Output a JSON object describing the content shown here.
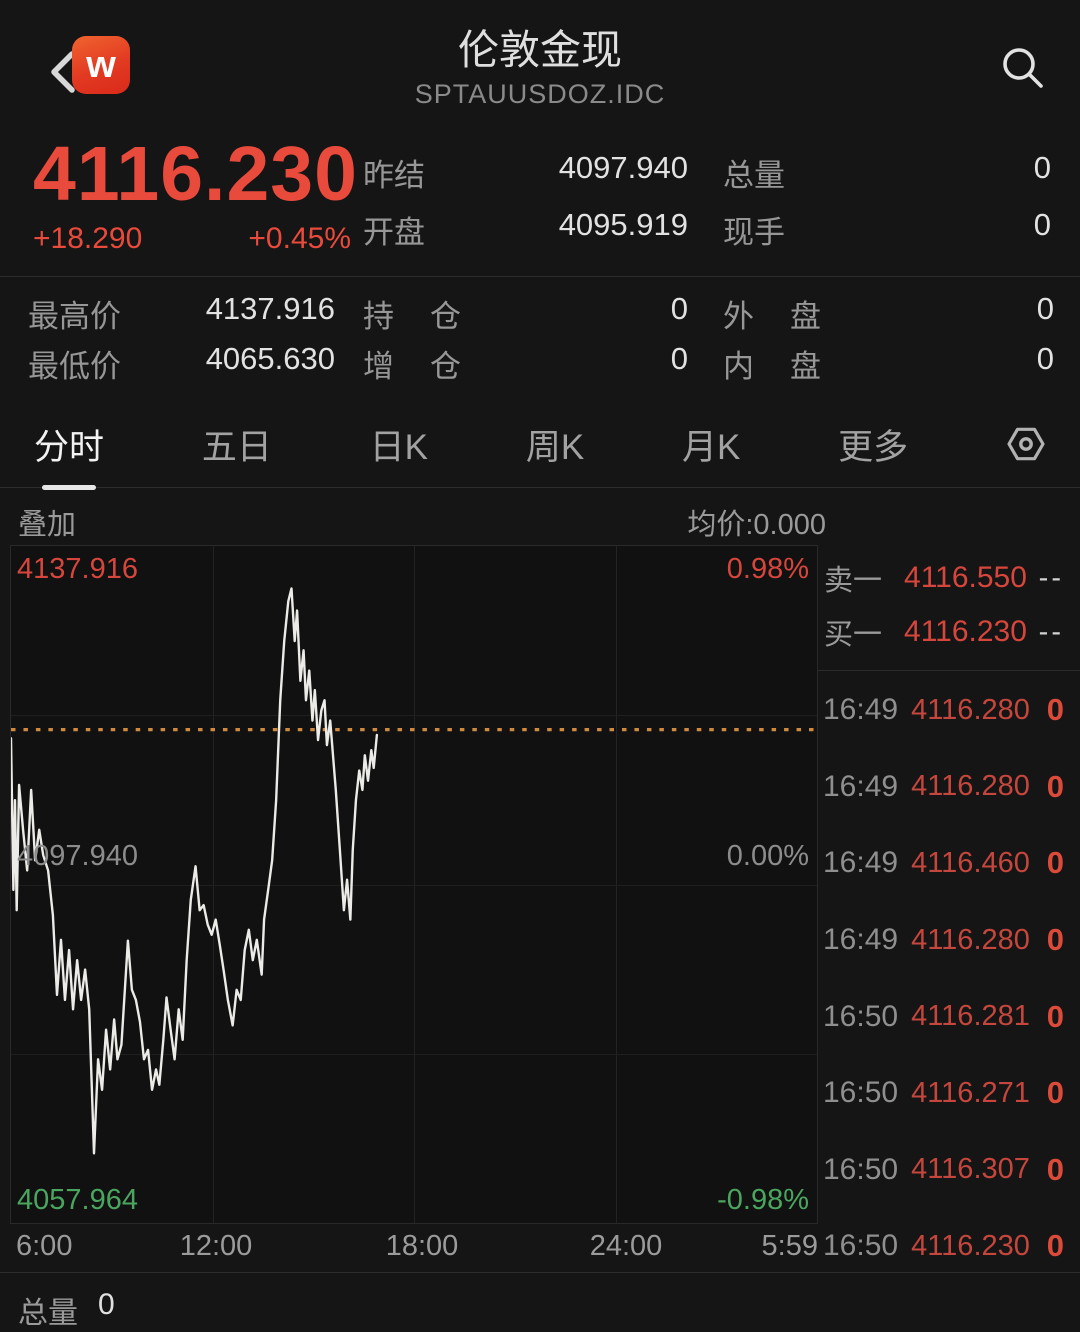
{
  "header": {
    "title": "伦敦金现",
    "subtitle": "SPTAUUSDOZ.IDC",
    "logo_text": "w"
  },
  "quote": {
    "last": "4116.230",
    "change": "+18.290",
    "change_pct": "+0.45%",
    "mid": [
      {
        "label": "昨结",
        "value": "4097.940"
      },
      {
        "label": "开盘",
        "value": "4095.919"
      }
    ],
    "right": [
      {
        "label": "总量",
        "value": "0"
      },
      {
        "label": "现手",
        "value": "0"
      }
    ]
  },
  "stats": [
    [
      {
        "label": "最高价",
        "value": "4137.916"
      },
      {
        "label": "持仓",
        "value": "0"
      },
      {
        "label": "外盘",
        "value": "0"
      }
    ],
    [
      {
        "label": "最低价",
        "value": "4065.630"
      },
      {
        "label": "增仓",
        "value": "0"
      },
      {
        "label": "内盘",
        "value": "0"
      }
    ]
  ],
  "tabs": [
    {
      "label": "分时",
      "active": true
    },
    {
      "label": "五日",
      "active": false
    },
    {
      "label": "日K",
      "active": false
    },
    {
      "label": "周K",
      "active": false
    },
    {
      "label": "月K",
      "active": false
    },
    {
      "label": "更多",
      "active": false
    }
  ],
  "overlay": {
    "label": "叠加",
    "avg": "均价:0.000"
  },
  "chart_data": {
    "type": "line",
    "y_top_label": "4137.916",
    "y_top_pct": "0.98%",
    "y_mid_label": "4097.940",
    "y_mid_pct": "0.00%",
    "y_bottom_label": "4057.964",
    "y_bottom_pct": "-0.98%",
    "ylim": [
      4057.964,
      4137.916
    ],
    "prev_close": 4097.94,
    "last_price_line": 4116.23,
    "x_ticks": [
      "6:00",
      "12:00",
      "18:00",
      "24:00",
      "5:59"
    ],
    "points": [
      [
        0.0,
        4115.2
      ],
      [
        0.003,
        4097.3
      ],
      [
        0.005,
        4107.9
      ],
      [
        0.007,
        4094.9
      ],
      [
        0.01,
        4109.7
      ],
      [
        0.015,
        4104.4
      ],
      [
        0.02,
        4099.6
      ],
      [
        0.025,
        4109.1
      ],
      [
        0.03,
        4100.8
      ],
      [
        0.035,
        4104.4
      ],
      [
        0.04,
        4101.4
      ],
      [
        0.046,
        4099.6
      ],
      [
        0.052,
        4094.3
      ],
      [
        0.057,
        4084.9
      ],
      [
        0.062,
        4091.4
      ],
      [
        0.067,
        4084.3
      ],
      [
        0.072,
        4090.2
      ],
      [
        0.077,
        4083.2
      ],
      [
        0.082,
        4089.0
      ],
      [
        0.087,
        4084.3
      ],
      [
        0.092,
        4087.9
      ],
      [
        0.097,
        4083.2
      ],
      [
        0.103,
        4066.2
      ],
      [
        0.108,
        4077.3
      ],
      [
        0.113,
        4073.7
      ],
      [
        0.118,
        4080.8
      ],
      [
        0.123,
        4076.1
      ],
      [
        0.128,
        4082.0
      ],
      [
        0.132,
        4077.3
      ],
      [
        0.137,
        4079.0
      ],
      [
        0.145,
        4091.3
      ],
      [
        0.15,
        4085.5
      ],
      [
        0.155,
        4084.3
      ],
      [
        0.16,
        4081.7
      ],
      [
        0.165,
        4077.3
      ],
      [
        0.17,
        4078.4
      ],
      [
        0.175,
        4073.7
      ],
      [
        0.18,
        4076.1
      ],
      [
        0.184,
        4074.3
      ],
      [
        0.189,
        4079.6
      ],
      [
        0.193,
        4084.6
      ],
      [
        0.198,
        4080.8
      ],
      [
        0.203,
        4077.3
      ],
      [
        0.208,
        4083.2
      ],
      [
        0.213,
        4079.6
      ],
      [
        0.218,
        4089.0
      ],
      [
        0.223,
        4096.1
      ],
      [
        0.229,
        4100.1
      ],
      [
        0.234,
        4094.9
      ],
      [
        0.239,
        4095.5
      ],
      [
        0.244,
        4093.2
      ],
      [
        0.249,
        4092.0
      ],
      [
        0.254,
        4093.8
      ],
      [
        0.259,
        4090.8
      ],
      [
        0.264,
        4087.7
      ],
      [
        0.269,
        4084.3
      ],
      [
        0.275,
        4081.3
      ],
      [
        0.28,
        4085.5
      ],
      [
        0.285,
        4084.3
      ],
      [
        0.29,
        4090.2
      ],
      [
        0.295,
        4092.6
      ],
      [
        0.3,
        4089.0
      ],
      [
        0.305,
        4091.4
      ],
      [
        0.311,
        4087.3
      ],
      [
        0.314,
        4093.8
      ],
      [
        0.319,
        4097.3
      ],
      [
        0.324,
        4100.8
      ],
      [
        0.329,
        4107.9
      ],
      [
        0.334,
        4119.7
      ],
      [
        0.339,
        4126.7
      ],
      [
        0.344,
        4131.4
      ],
      [
        0.348,
        4132.9
      ],
      [
        0.352,
        4126.7
      ],
      [
        0.355,
        4130.3
      ],
      [
        0.359,
        4122.0
      ],
      [
        0.363,
        4125.6
      ],
      [
        0.366,
        4119.7
      ],
      [
        0.37,
        4123.2
      ],
      [
        0.374,
        4117.3
      ],
      [
        0.377,
        4120.9
      ],
      [
        0.381,
        4115.0
      ],
      [
        0.385,
        4118.5
      ],
      [
        0.389,
        4119.7
      ],
      [
        0.392,
        4114.4
      ],
      [
        0.396,
        4117.3
      ],
      [
        0.4,
        4112.6
      ],
      [
        0.403,
        4109.1
      ],
      [
        0.408,
        4102.0
      ],
      [
        0.413,
        4094.9
      ],
      [
        0.417,
        4098.5
      ],
      [
        0.421,
        4093.8
      ],
      [
        0.424,
        4102.0
      ],
      [
        0.428,
        4107.9
      ],
      [
        0.432,
        4111.4
      ],
      [
        0.436,
        4109.1
      ],
      [
        0.439,
        4113.2
      ],
      [
        0.443,
        4110.2
      ],
      [
        0.447,
        4113.8
      ],
      [
        0.45,
        4111.7
      ],
      [
        0.454,
        4115.6
      ]
    ]
  },
  "order_book": {
    "ask": {
      "label": "卖一",
      "price": "4116.550",
      "vol": "--"
    },
    "bid": {
      "label": "买一",
      "price": "4116.230",
      "vol": "--"
    }
  },
  "ticks": [
    {
      "time": "16:49",
      "price": "4116.280",
      "vol": "0"
    },
    {
      "time": "16:49",
      "price": "4116.280",
      "vol": "0"
    },
    {
      "time": "16:49",
      "price": "4116.460",
      "vol": "0"
    },
    {
      "time": "16:49",
      "price": "4116.280",
      "vol": "0"
    },
    {
      "time": "16:50",
      "price": "4116.281",
      "vol": "0"
    },
    {
      "time": "16:50",
      "price": "4116.271",
      "vol": "0"
    },
    {
      "time": "16:50",
      "price": "4116.307",
      "vol": "0"
    },
    {
      "time": "16:50",
      "price": "4116.230",
      "vol": "0"
    }
  ],
  "bottom": {
    "label": "总量",
    "value": "0"
  },
  "colors": {
    "up_red": "#e84a3c",
    "tick_red": "#c4463c",
    "down_green": "#4aa55f",
    "avg_line_orange": "#d08a3e",
    "price_line_white": "#ecebe7",
    "label_gray": "#8f8f8f"
  }
}
